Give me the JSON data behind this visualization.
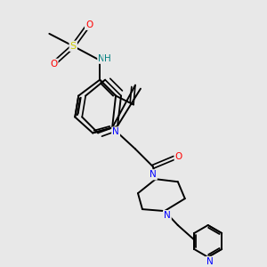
{
  "background_color": "#e8e8e8",
  "bond_color": "#000000",
  "atom_colors": {
    "N": "#0000ff",
    "O": "#ff0000",
    "S": "#cccc00",
    "NH": "#008080",
    "C": "#000000"
  },
  "figsize": [
    3.0,
    3.0
  ],
  "dpi": 100
}
